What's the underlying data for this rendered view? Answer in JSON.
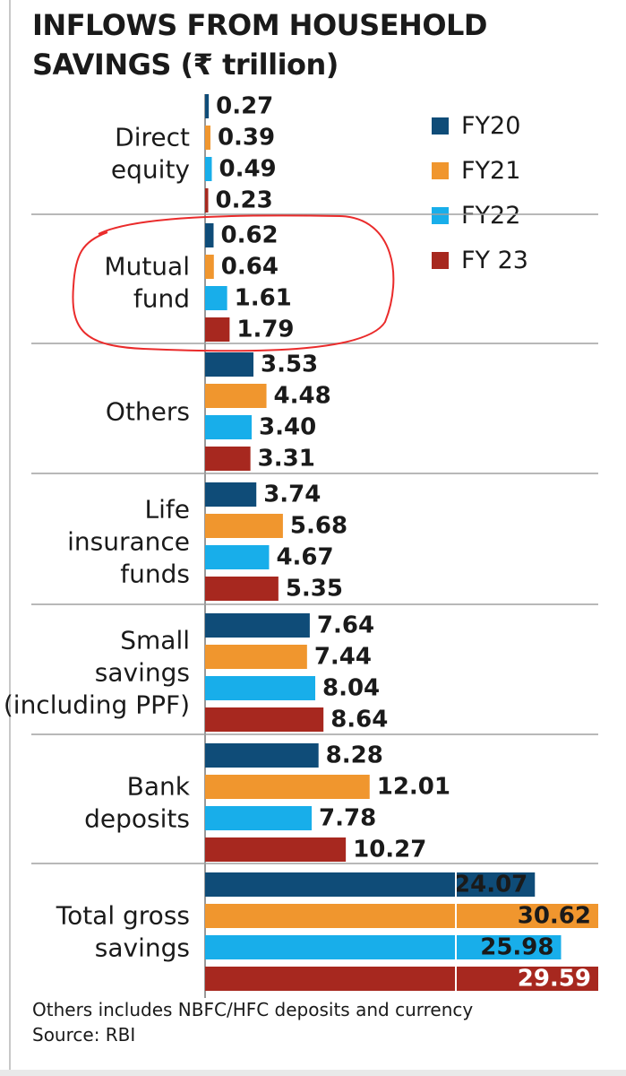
{
  "title_lines": [
    "INFLOWS FROM HOUSEHOLD",
    "SAVINGS (₹ trillion)"
  ],
  "footnote_lines": [
    "Others includes NBFC/HFC deposits and currency",
    "Source: RBI"
  ],
  "colors": {
    "FY20": "#0f4c78",
    "FY21": "#f0962e",
    "FY22": "#18aeea",
    "FY 23": "#a7281f",
    "annotation_circle": "#ea2b2b",
    "separator": "#a0a0a0"
  },
  "chart_data": {
    "type": "bar",
    "orientation": "horizontal",
    "categories": [
      [
        "Direct",
        "equity"
      ],
      [
        "Mutual",
        "fund"
      ],
      [
        "Others"
      ],
      [
        "Life",
        "insurance",
        "funds"
      ],
      [
        "Small",
        "savings",
        "(including PPF)"
      ],
      [
        "Bank",
        "deposits"
      ],
      [
        "Total gross",
        "savings"
      ]
    ],
    "series": [
      {
        "name": "FY20",
        "values": [
          0.27,
          0.62,
          3.53,
          3.74,
          7.64,
          8.28,
          24.07
        ]
      },
      {
        "name": "FY21",
        "values": [
          0.39,
          0.64,
          4.48,
          5.68,
          7.44,
          12.01,
          30.62
        ]
      },
      {
        "name": "FY22",
        "values": [
          0.49,
          1.61,
          3.4,
          4.67,
          8.04,
          7.78,
          25.98
        ]
      },
      {
        "name": "FY 23",
        "values": [
          0.23,
          1.79,
          3.31,
          5.35,
          8.64,
          10.27,
          29.59
        ]
      }
    ],
    "value_labels": [
      [
        "0.27",
        "0.39",
        "0.49",
        "0.23"
      ],
      [
        "0.62",
        "0.64",
        "1.61",
        "1.79"
      ],
      [
        "3.53",
        "4.48",
        "3.40",
        "3.31"
      ],
      [
        "3.74",
        "5.68",
        "4.67",
        "5.35"
      ],
      [
        "7.64",
        "7.44",
        "8.04",
        "8.64"
      ],
      [
        "8.28",
        "12.01",
        "7.78",
        "10.27"
      ],
      [
        "24.07",
        "30.62",
        "25.98",
        "29.59"
      ]
    ],
    "legend_position": "top-right",
    "grid": false,
    "highlighted_category": "Mutual fund"
  }
}
